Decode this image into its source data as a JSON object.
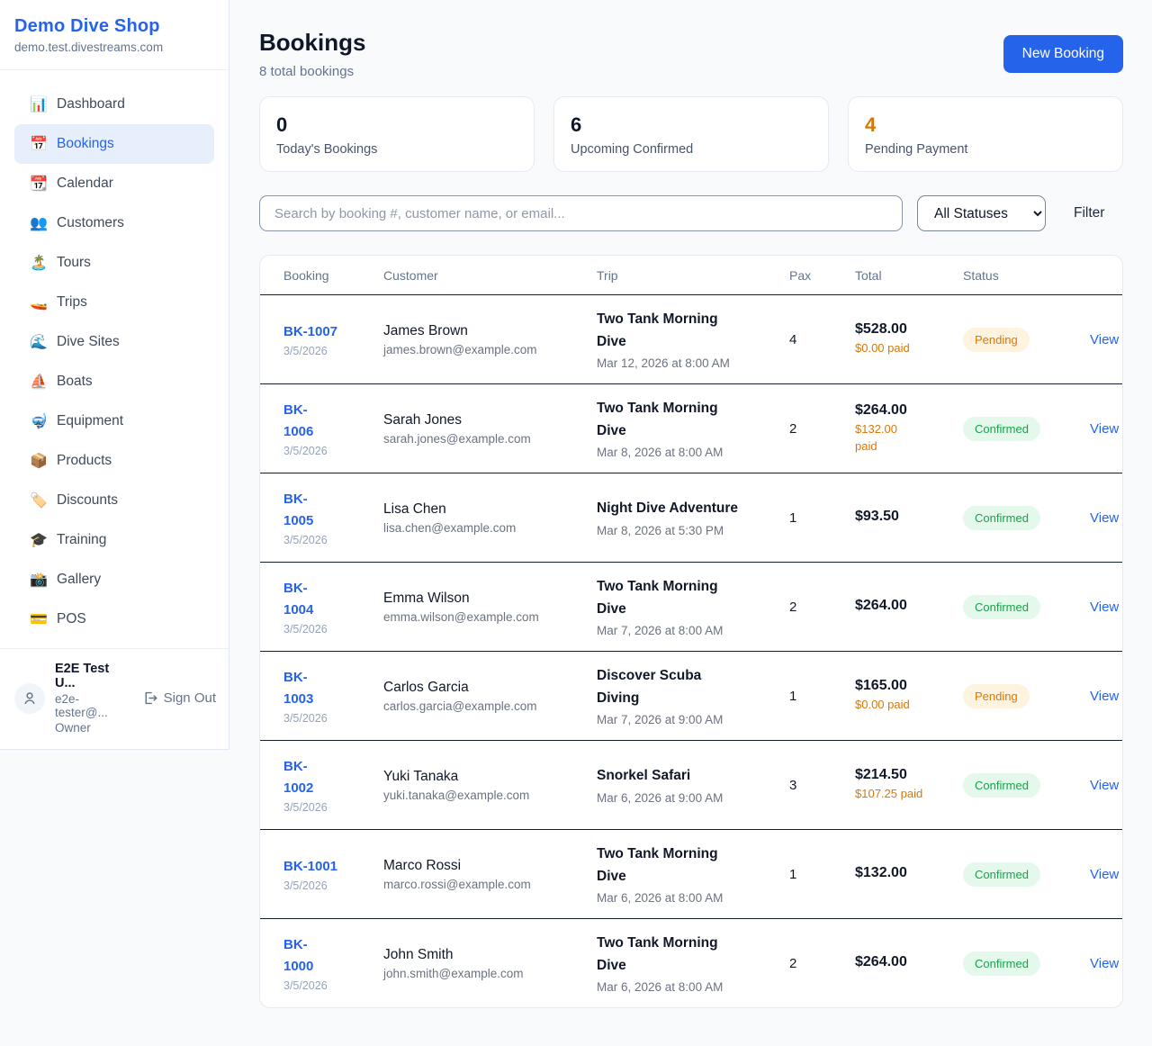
{
  "colors": {
    "accent": "#2563eb",
    "pending": "#d97706",
    "confirmed": "#16a34a",
    "page_bg": "#f8fafc"
  },
  "sidebar": {
    "brand": {
      "name": "Demo Dive Shop",
      "domain": "demo.test.divestreams.com"
    },
    "items": [
      {
        "name": "sidebar-item-dashboard",
        "icon_name": "bar-chart-icon",
        "icon": "📊",
        "label": "Dashboard"
      },
      {
        "name": "sidebar-item-bookings",
        "icon_name": "calendar-icon",
        "icon": "📅",
        "label": "Bookings",
        "active": true
      },
      {
        "name": "sidebar-item-calendar",
        "icon_name": "tear-calendar-icon",
        "icon": "📆",
        "label": "Calendar"
      },
      {
        "name": "sidebar-item-customers",
        "icon_name": "users-icon",
        "icon": "👥",
        "label": "Customers"
      },
      {
        "name": "sidebar-item-tours",
        "icon_name": "island-icon",
        "icon": "🏝️",
        "label": "Tours"
      },
      {
        "name": "sidebar-item-trips",
        "icon_name": "speedboat-icon",
        "icon": "🚤",
        "label": "Trips"
      },
      {
        "name": "sidebar-item-dive-sites",
        "icon_name": "wave-icon",
        "icon": "🌊",
        "label": "Dive Sites"
      },
      {
        "name": "sidebar-item-boats",
        "icon_name": "sailboat-icon",
        "icon": "⛵",
        "label": "Boats"
      },
      {
        "name": "sidebar-item-equipment",
        "icon_name": "dive-mask-icon",
        "icon": "🤿",
        "label": "Equipment"
      },
      {
        "name": "sidebar-item-products",
        "icon_name": "package-icon",
        "icon": "📦",
        "label": "Products"
      },
      {
        "name": "sidebar-item-discounts",
        "icon_name": "tag-icon",
        "icon": "🏷️",
        "label": "Discounts"
      },
      {
        "name": "sidebar-item-training",
        "icon_name": "graduation-cap-icon",
        "icon": "🎓",
        "label": "Training"
      },
      {
        "name": "sidebar-item-gallery",
        "icon_name": "camera-icon",
        "icon": "📸",
        "label": "Gallery"
      },
      {
        "name": "sidebar-item-pos",
        "icon_name": "credit-card-icon",
        "icon": "💳",
        "label": "POS"
      }
    ],
    "user": {
      "name": "E2E Test U...",
      "email": "e2e-tester@...",
      "role": "Owner",
      "sign_out_label": "Sign Out"
    }
  },
  "header": {
    "title": "Bookings",
    "subtitle": "8 total bookings",
    "new_booking_label": "New Booking"
  },
  "stats": [
    {
      "value": "0",
      "label": "Today's Bookings"
    },
    {
      "value": "6",
      "label": "Upcoming Confirmed"
    },
    {
      "value": "4",
      "label": "Pending Payment",
      "accent": "orange"
    }
  ],
  "filters": {
    "search_placeholder": "Search by booking #, customer name, or email...",
    "status_selected": "All Statuses",
    "filter_label": "Filter"
  },
  "table": {
    "columns": [
      "Booking",
      "Customer",
      "Trip",
      "Pax",
      "Total",
      "Status"
    ],
    "rows": [
      {
        "id": "BK-1007",
        "date": "3/5/2026",
        "customer": "James Brown",
        "email": "james.brown@example.com",
        "trip": "Two Tank Morning\nDive",
        "trip_datetime": "Mar 12, 2026 at 8:00 AM",
        "pax": "4",
        "total": "$528.00",
        "paid": "$0.00 paid",
        "status": "Pending",
        "action": "View"
      },
      {
        "id": "BK-\n1006",
        "date": "3/5/2026",
        "customer": "Sarah Jones",
        "email": "sarah.jones@example.com",
        "trip": "Two Tank Morning\nDive",
        "trip_datetime": "Mar 8, 2026 at 8:00 AM",
        "pax": "2",
        "total": "$264.00",
        "paid": "$132.00\npaid",
        "status": "Confirmed",
        "action": "View"
      },
      {
        "id": "BK-\n1005",
        "date": "3/5/2026",
        "customer": "Lisa Chen",
        "email": "lisa.chen@example.com",
        "trip": "Night Dive Adventure",
        "trip_datetime": "Mar 8, 2026 at 5:30 PM",
        "pax": "1",
        "total": "$93.50",
        "paid": "",
        "status": "Confirmed",
        "action": "View"
      },
      {
        "id": "BK-\n1004",
        "date": "3/5/2026",
        "customer": "Emma Wilson",
        "email": "emma.wilson@example.com",
        "trip": "Two Tank Morning\nDive",
        "trip_datetime": "Mar 7, 2026 at 8:00 AM",
        "pax": "2",
        "total": "$264.00",
        "paid": "",
        "status": "Confirmed",
        "action": "View"
      },
      {
        "id": "BK-\n1003",
        "date": "3/5/2026",
        "customer": "Carlos Garcia",
        "email": "carlos.garcia@example.com",
        "trip": "Discover Scuba\nDiving",
        "trip_datetime": "Mar 7, 2026 at 9:00 AM",
        "pax": "1",
        "total": "$165.00",
        "paid": "$0.00 paid",
        "status": "Pending",
        "action": "View"
      },
      {
        "id": "BK-\n1002",
        "date": "3/5/2026",
        "customer": "Yuki Tanaka",
        "email": "yuki.tanaka@example.com",
        "trip": "Snorkel Safari",
        "trip_datetime": "Mar 6, 2026 at 9:00 AM",
        "pax": "3",
        "total": "$214.50",
        "paid": "$107.25 paid",
        "status": "Confirmed",
        "action": "View"
      },
      {
        "id": "BK-1001",
        "date": "3/5/2026",
        "customer": "Marco Rossi",
        "email": "marco.rossi@example.com",
        "trip": "Two Tank Morning\nDive",
        "trip_datetime": "Mar 6, 2026 at 8:00 AM",
        "pax": "1",
        "total": "$132.00",
        "paid": "",
        "status": "Confirmed",
        "action": "View"
      },
      {
        "id": "BK-\n1000",
        "date": "3/5/2026",
        "customer": "John Smith",
        "email": "john.smith@example.com",
        "trip": "Two Tank Morning\nDive",
        "trip_datetime": "Mar 6, 2026 at 8:00 AM",
        "pax": "2",
        "total": "$264.00",
        "paid": "",
        "status": "Confirmed",
        "action": "View"
      }
    ]
  }
}
